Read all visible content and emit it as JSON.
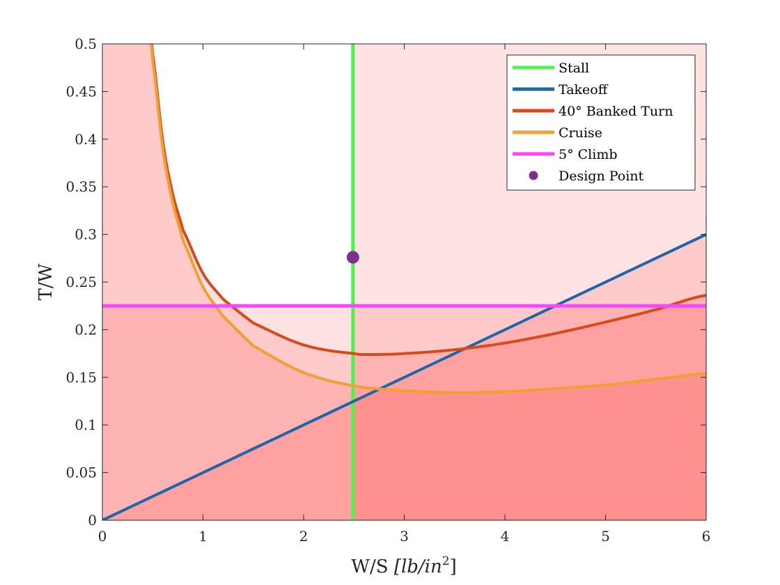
{
  "chart_data": {
    "type": "line",
    "xlabel_main": "W/S",
    "xlabel_units": "[lb/in",
    "xlabel_sup": "2",
    "xlabel_close": "]",
    "ylabel": "T/W",
    "xlim": [
      0,
      6
    ],
    "ylim": [
      0,
      0.5
    ],
    "xticks": [
      "0",
      "1",
      "2",
      "3",
      "4",
      "5",
      "6"
    ],
    "yticks": [
      "0",
      "0.05",
      "0.1",
      "0.15",
      "0.2",
      "0.25",
      "0.3",
      "0.35",
      "0.4",
      "0.45",
      "0.5"
    ],
    "grid": false,
    "legend_position": "top-right",
    "series": [
      {
        "name": "Stall",
        "kind": "vertical",
        "x": 2.49,
        "color": "#4df24d"
      },
      {
        "name": "Takeoff",
        "kind": "line",
        "x": [
          0,
          6
        ],
        "y": [
          0,
          0.3
        ],
        "color": "#1f66a8"
      },
      {
        "name": "40° Banked Turn",
        "kind": "curve",
        "x": [
          0.45,
          0.5,
          0.6,
          0.7,
          0.8,
          1.0,
          1.2,
          1.5,
          2.0,
          2.5,
          2.7,
          3.0,
          3.5,
          4.0,
          4.5,
          5.0,
          5.5,
          6.0
        ],
        "y": [
          0.53,
          0.489,
          0.398,
          0.342,
          0.305,
          0.259,
          0.232,
          0.207,
          0.184,
          0.175,
          0.174,
          0.175,
          0.179,
          0.186,
          0.196,
          0.208,
          0.221,
          0.236
        ],
        "color": "#d94a1a"
      },
      {
        "name": "Cruise",
        "kind": "curve",
        "x": [
          0.45,
          0.5,
          0.6,
          0.7,
          0.8,
          1.0,
          1.2,
          1.5,
          2.0,
          2.5,
          3.0,
          3.5,
          4.0,
          4.5,
          5.0,
          5.5,
          6.0
        ],
        "y": [
          0.53,
          0.482,
          0.39,
          0.333,
          0.294,
          0.245,
          0.214,
          0.183,
          0.155,
          0.141,
          0.136,
          0.134,
          0.135,
          0.138,
          0.142,
          0.148,
          0.154
        ],
        "color": "#f0a030"
      },
      {
        "name": "5° Climb",
        "kind": "horizontal",
        "y": 0.225,
        "color": "#ff44ff"
      },
      {
        "name": "Design Point",
        "kind": "point",
        "x": 2.49,
        "y": 0.276,
        "color": "#7e2f8e"
      }
    ]
  }
}
